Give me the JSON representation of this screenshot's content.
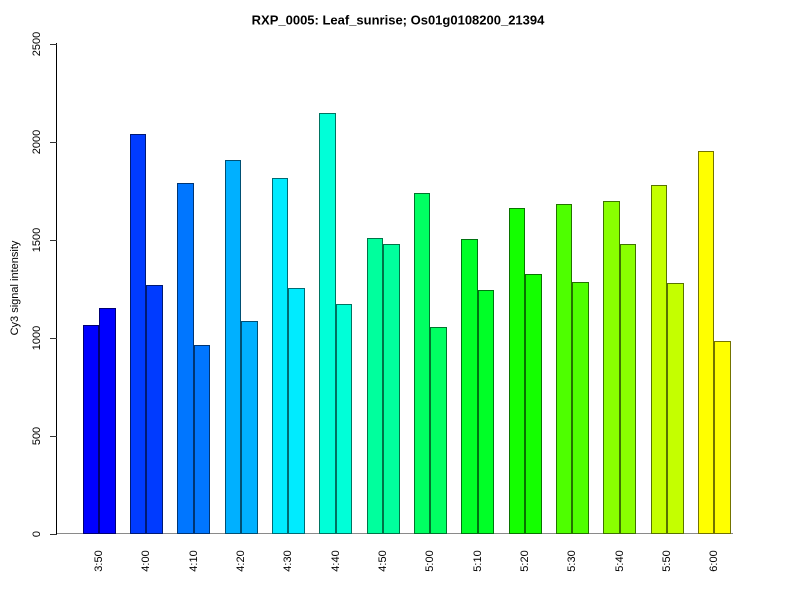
{
  "title": "RXP_0005: Leaf_sunrise; Os01g0108200_21394",
  "chart_data": {
    "type": "bar",
    "title": "RXP_0005: Leaf_sunrise; Os01g0108200_21394",
    "xlabel": "",
    "ylabel": "Cy3 signal intensity",
    "ylim": [
      0,
      2500
    ],
    "y_ticks": [
      0,
      500,
      1000,
      1500,
      2000,
      2500
    ],
    "grid": false,
    "legend_position": "none",
    "categories": [
      "3:50",
      "4:00",
      "4:10",
      "4:20",
      "4:30",
      "4:40",
      "4:50",
      "5:00",
      "5:10",
      "5:20",
      "5:30",
      "5:40",
      "5:50",
      "6:00"
    ],
    "series": [
      {
        "name": "left-bar",
        "values": [
          1065,
          2040,
          1790,
          1905,
          1815,
          2145,
          1510,
          1740,
          1505,
          1660,
          1680,
          1695,
          1780,
          1950
        ]
      },
      {
        "name": "right-bar",
        "values": [
          1150,
          1270,
          960,
          1085,
          1255,
          1170,
          1475,
          1055,
          1245,
          1325,
          1285,
          1475,
          1280,
          980
        ]
      }
    ],
    "bar_colors": [
      "#0000FF",
      "#003BFF",
      "#0076FF",
      "#00B0FF",
      "#00EBFF",
      "#00FFD8",
      "#00FF9D",
      "#00FF62",
      "#00FF27",
      "#14FF00",
      "#4EFF00",
      "#89FF00",
      "#C4FF00",
      "#FFFF00"
    ],
    "axis_color": "#000000",
    "baseline_color": "#8a8a8a"
  }
}
